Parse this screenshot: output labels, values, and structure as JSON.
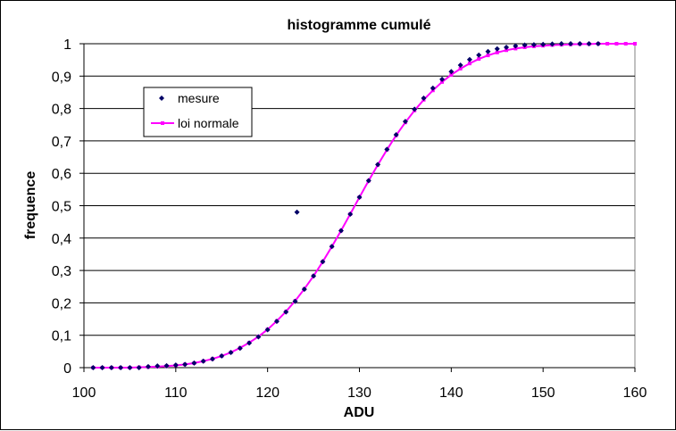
{
  "chart_data": {
    "type": "scatter",
    "title": "histogramme cumulé",
    "xlabel": "ADU",
    "ylabel": "frequence",
    "xlim": [
      100,
      160
    ],
    "ylim": [
      0,
      1
    ],
    "x_ticks": [
      "100",
      "110",
      "120",
      "130",
      "140",
      "150",
      "160"
    ],
    "y_ticks": [
      "0",
      "0,1",
      "0,2",
      "0,3",
      "0,4",
      "0,5",
      "0,6",
      "0,7",
      "0,8",
      "0,9",
      "1"
    ],
    "grid": "horizontal",
    "legend_position": "upper-left",
    "colors": {
      "mesure": "#000066",
      "loi_normale": "#ff00ff"
    },
    "series": [
      {
        "name": "mesure",
        "marker": "diamond",
        "points": [
          [
            101,
            0.0
          ],
          [
            102,
            0.0
          ],
          [
            103,
            0.0
          ],
          [
            104,
            0.0
          ],
          [
            105,
            0.0
          ],
          [
            106,
            0.0
          ],
          [
            107,
            0.003
          ],
          [
            108,
            0.005
          ],
          [
            109,
            0.006
          ],
          [
            110,
            0.008
          ],
          [
            111,
            0.01
          ],
          [
            112,
            0.014
          ],
          [
            113,
            0.02
          ],
          [
            114,
            0.027
          ],
          [
            115,
            0.036
          ],
          [
            116,
            0.047
          ],
          [
            117,
            0.06
          ],
          [
            118,
            0.076
          ],
          [
            119,
            0.095
          ],
          [
            120,
            0.117
          ],
          [
            121,
            0.143
          ],
          [
            122,
            0.172
          ],
          [
            123,
            0.205
          ],
          [
            123.2,
            0.48
          ],
          [
            124,
            0.242
          ],
          [
            125,
            0.283
          ],
          [
            126,
            0.327
          ],
          [
            127,
            0.374
          ],
          [
            128,
            0.423
          ],
          [
            129,
            0.474
          ],
          [
            130,
            0.526
          ],
          [
            131,
            0.577
          ],
          [
            132,
            0.627
          ],
          [
            133,
            0.674
          ],
          [
            134,
            0.719
          ],
          [
            135,
            0.76
          ],
          [
            136,
            0.798
          ],
          [
            137,
            0.832
          ],
          [
            138,
            0.863
          ],
          [
            139,
            0.89
          ],
          [
            140,
            0.914
          ],
          [
            141,
            0.934
          ],
          [
            142,
            0.951
          ],
          [
            143,
            0.965
          ],
          [
            144,
            0.976
          ],
          [
            145,
            0.984
          ],
          [
            146,
            0.989
          ],
          [
            147,
            0.993
          ],
          [
            148,
            0.996
          ],
          [
            149,
            0.997
          ],
          [
            150,
            0.998
          ],
          [
            151,
            0.999
          ],
          [
            152,
            1.0
          ],
          [
            153,
            1.0
          ],
          [
            154,
            1.0
          ],
          [
            155,
            1.0
          ],
          [
            156,
            1.0
          ]
        ]
      },
      {
        "name": "loi normale",
        "marker": "line",
        "points": [
          [
            101,
            0.0
          ],
          [
            102,
            0.0
          ],
          [
            103,
            0.0
          ],
          [
            104,
            0.0
          ],
          [
            105,
            0.0
          ],
          [
            106,
            0.001
          ],
          [
            107,
            0.002
          ],
          [
            108,
            0.003
          ],
          [
            109,
            0.005
          ],
          [
            110,
            0.007
          ],
          [
            111,
            0.01
          ],
          [
            112,
            0.014
          ],
          [
            113,
            0.02
          ],
          [
            114,
            0.027
          ],
          [
            115,
            0.036
          ],
          [
            116,
            0.047
          ],
          [
            117,
            0.061
          ],
          [
            118,
            0.077
          ],
          [
            119,
            0.096
          ],
          [
            120,
            0.118
          ],
          [
            121,
            0.144
          ],
          [
            122,
            0.173
          ],
          [
            123,
            0.206
          ],
          [
            124,
            0.243
          ],
          [
            125,
            0.283
          ],
          [
            126,
            0.327
          ],
          [
            127,
            0.374
          ],
          [
            128,
            0.423
          ],
          [
            129,
            0.474
          ],
          [
            130,
            0.526
          ],
          [
            131,
            0.577
          ],
          [
            132,
            0.626
          ],
          [
            133,
            0.673
          ],
          [
            134,
            0.717
          ],
          [
            135,
            0.757
          ],
          [
            136,
            0.794
          ],
          [
            137,
            0.827
          ],
          [
            138,
            0.856
          ],
          [
            139,
            0.882
          ],
          [
            140,
            0.904
          ],
          [
            141,
            0.923
          ],
          [
            142,
            0.939
          ],
          [
            143,
            0.953
          ],
          [
            144,
            0.964
          ],
          [
            145,
            0.973
          ],
          [
            146,
            0.98
          ],
          [
            147,
            0.985
          ],
          [
            148,
            0.989
          ],
          [
            149,
            0.992
          ],
          [
            150,
            0.994
          ],
          [
            151,
            0.996
          ],
          [
            152,
            0.997
          ],
          [
            153,
            0.998
          ],
          [
            154,
            0.999
          ],
          [
            155,
            0.999
          ],
          [
            156,
            1.0
          ],
          [
            157,
            1.0
          ],
          [
            158,
            1.0
          ],
          [
            159,
            1.0
          ],
          [
            160,
            1.0
          ]
        ]
      }
    ]
  }
}
